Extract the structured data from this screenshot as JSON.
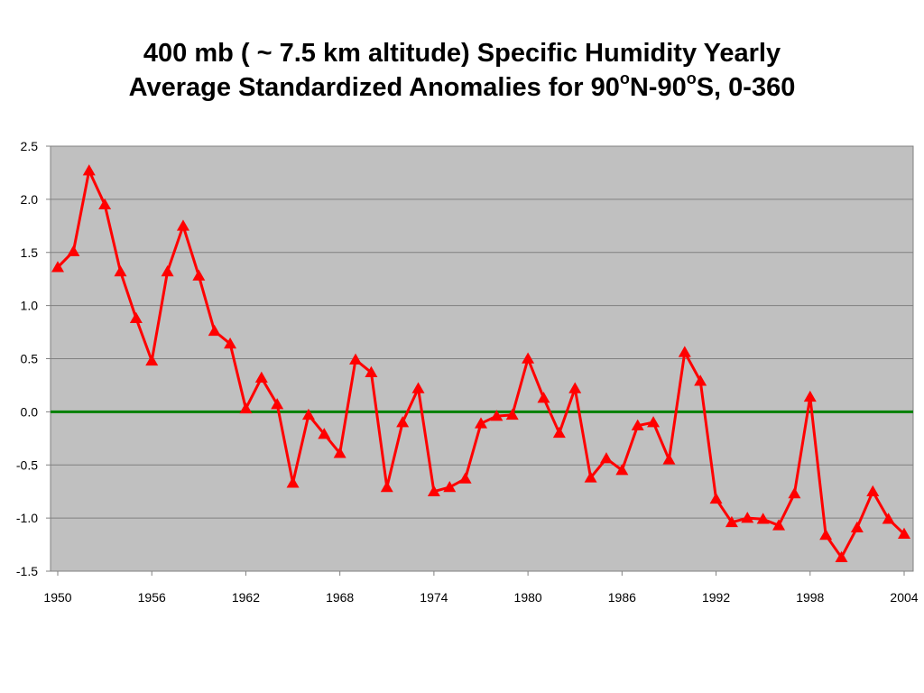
{
  "chart_data": {
    "type": "line",
    "title_line1": "400 mb ( ~ 7.5 km altitude) Specific Humidity Yearly",
    "title_line2_parts": [
      "Average Standardized Anomalies for 90",
      "o",
      "N-90",
      "o",
      "S, 0-360"
    ],
    "xlabel": "",
    "ylabel": "",
    "xlim": [
      1950,
      2004
    ],
    "ylim": [
      -1.5,
      2.5
    ],
    "y_ticks": [
      "2.5",
      "2.0",
      "1.5",
      "1.0",
      "0.5",
      "0.0",
      "-0.5",
      "-1.0",
      "-1.5"
    ],
    "x_ticks": [
      "1950",
      "1956",
      "1962",
      "1968",
      "1974",
      "1980",
      "1986",
      "1992",
      "1998",
      "2004"
    ],
    "grid": true,
    "background_color": "#c0c0c0",
    "series_color": "#ff0000",
    "zero_line_color": "#008000",
    "marker": "triangle",
    "x": [
      1950,
      1951,
      1952,
      1953,
      1954,
      1955,
      1956,
      1957,
      1958,
      1959,
      1960,
      1961,
      1962,
      1963,
      1964,
      1965,
      1966,
      1967,
      1968,
      1969,
      1970,
      1971,
      1972,
      1973,
      1974,
      1975,
      1976,
      1977,
      1978,
      1979,
      1980,
      1981,
      1982,
      1983,
      1984,
      1985,
      1986,
      1987,
      1988,
      1989,
      1990,
      1991,
      1992,
      1993,
      1994,
      1995,
      1996,
      1997,
      1998,
      1999,
      2000,
      2001,
      2002,
      2003,
      2004
    ],
    "values": [
      1.36,
      1.51,
      2.27,
      1.95,
      1.32,
      0.88,
      0.48,
      1.32,
      1.75,
      1.28,
      0.76,
      0.64,
      0.03,
      0.32,
      0.07,
      -0.67,
      -0.03,
      -0.21,
      -0.39,
      0.49,
      0.37,
      -0.71,
      -0.1,
      0.22,
      -0.75,
      -0.71,
      -0.63,
      -0.11,
      -0.04,
      -0.03,
      0.5,
      0.13,
      -0.2,
      0.22,
      -0.62,
      -0.44,
      -0.55,
      -0.13,
      -0.1,
      -0.45,
      0.56,
      0.29,
      -0.82,
      -1.04,
      -1.0,
      -1.01,
      -1.07,
      -0.77,
      0.14,
      -1.16,
      -1.37,
      -1.09,
      -0.75,
      -1.01,
      -1.15
    ]
  }
}
